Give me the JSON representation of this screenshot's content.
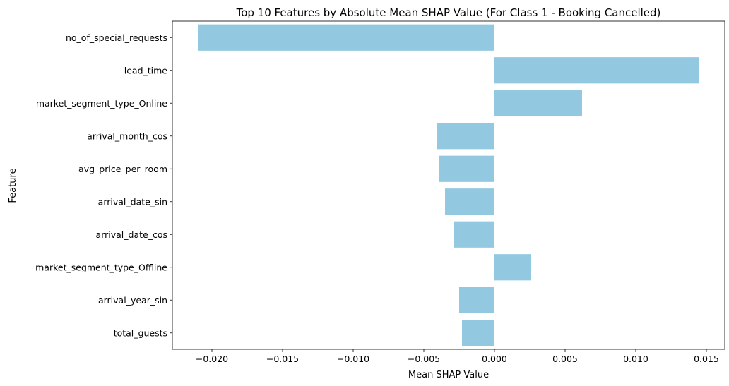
{
  "chart_data": {
    "type": "bar",
    "orientation": "horizontal",
    "title": "Top 10 Features by Absolute Mean SHAP Value (For Class 1 - Booking Cancelled)",
    "xlabel": "Mean SHAP Value",
    "ylabel": "Feature",
    "categories": [
      "no_of_special_requests",
      "lead_time",
      "market_segment_type_Online",
      "arrival_month_cos",
      "avg_price_per_room",
      "arrival_date_sin",
      "arrival_date_cos",
      "market_segment_type_Offline",
      "arrival_year_sin",
      "total_guests"
    ],
    "values": [
      -0.021,
      0.0145,
      0.0062,
      -0.0041,
      -0.0039,
      -0.0035,
      -0.0029,
      0.0026,
      -0.0025,
      -0.0023
    ],
    "xlim": [
      -0.0228,
      0.0163
    ],
    "xticks": [
      -0.02,
      -0.015,
      -0.01,
      -0.005,
      0.0,
      0.005,
      0.01,
      0.015
    ],
    "xtick_labels": [
      "−0.020",
      "−0.015",
      "−0.010",
      "−0.005",
      "0.000",
      "0.005",
      "0.010",
      "0.015"
    ],
    "bar_color": "#92c9e0",
    "grid": false,
    "legend": "none"
  }
}
